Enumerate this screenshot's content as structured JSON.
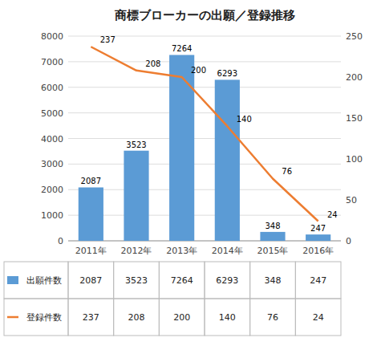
{
  "chart_data": {
    "type": "bar",
    "title": "商標ブローカーの出願／登録推移",
    "categories": [
      "2011年",
      "2012年",
      "2013年",
      "2014年",
      "2015年",
      "2016年"
    ],
    "series": [
      {
        "name": "出願件数",
        "type": "bar",
        "color": "#5B9BD5",
        "values": [
          2087,
          3523,
          7264,
          6293,
          348,
          247
        ]
      },
      {
        "name": "登録件数",
        "type": "line",
        "axis": "y2",
        "color": "#ED7D31",
        "values": [
          237,
          208,
          200,
          140,
          76,
          24
        ]
      }
    ],
    "ylim": [
      0,
      8000
    ],
    "yticks": [
      0,
      1000,
      2000,
      3000,
      4000,
      5000,
      6000,
      7000,
      8000
    ],
    "y2lim": [
      0,
      250
    ],
    "y2ticks": [
      0,
      50,
      100,
      150,
      200,
      250
    ],
    "grid": true,
    "data_labels": true
  }
}
